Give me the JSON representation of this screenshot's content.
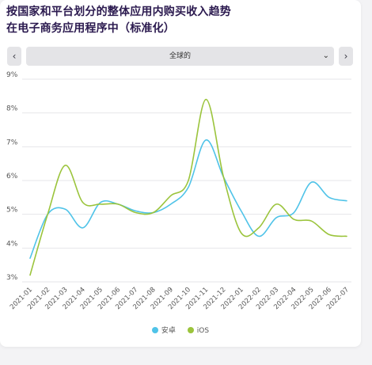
{
  "title_line1": "按国家和平台划分的整体应用内购买收入趋势",
  "title_line2": "在电子商务应用程序中（标准化）",
  "controls": {
    "prev_icon": "‹",
    "next_icon": "›",
    "region_selected": "全球的",
    "chevron_icon": "⌄"
  },
  "colors": {
    "android": "#4fc3e8",
    "ios": "#9bc43c",
    "grid": "#e6e6ea",
    "tick": "#555555"
  },
  "chart_data": {
    "type": "line",
    "x": [
      "2021-01",
      "2021-02",
      "2021-03",
      "2021-04",
      "2021-05",
      "2021-06",
      "2021-07",
      "2021-08",
      "2021-09",
      "2021-10",
      "2021-11",
      "2021-12",
      "2022-01",
      "2022-02",
      "2022-03",
      "2022-04",
      "2022-05",
      "2022-06",
      "2022-07"
    ],
    "ylim": [
      3,
      9
    ],
    "yticks": [
      "3%",
      "4%",
      "5%",
      "6%",
      "7%",
      "8%",
      "9%"
    ],
    "grid": true,
    "legend_position": "bottom",
    "series": [
      {
        "name": "安卓",
        "color": "#4fc3e8",
        "values": [
          3.7,
          5.0,
          5.15,
          4.6,
          5.35,
          5.3,
          5.1,
          5.05,
          5.3,
          5.8,
          7.2,
          6.1,
          5.1,
          4.35,
          4.9,
          5.05,
          5.95,
          5.5,
          5.4
        ]
      },
      {
        "name": "iOS",
        "color": "#9bc43c",
        "values": [
          3.2,
          5.0,
          6.45,
          5.35,
          5.3,
          5.3,
          5.05,
          5.05,
          5.55,
          6.0,
          8.4,
          6.1,
          4.45,
          4.6,
          5.3,
          4.85,
          4.8,
          4.4,
          4.35
        ]
      }
    ]
  }
}
